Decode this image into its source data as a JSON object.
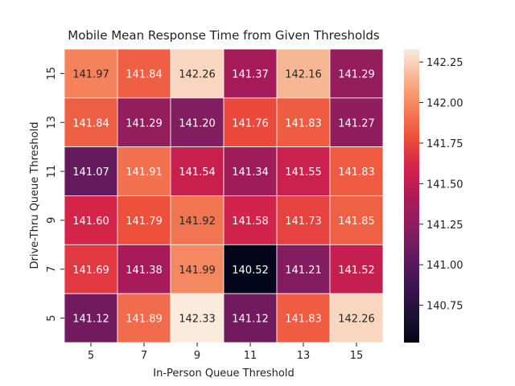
{
  "chart_data": {
    "type": "heatmap",
    "title": "Mobile Mean Response Time from Given Thresholds",
    "xlabel": "In-Person Queue Threshold",
    "ylabel": "Drive-Thru Queue Threshold",
    "x_categories": [
      "5",
      "7",
      "9",
      "11",
      "13",
      "15"
    ],
    "y_categories": [
      "15",
      "13",
      "11",
      "9",
      "7",
      "5"
    ],
    "values": [
      [
        141.97,
        141.84,
        142.26,
        141.37,
        142.16,
        141.29
      ],
      [
        141.84,
        141.29,
        141.2,
        141.76,
        141.83,
        141.27
      ],
      [
        141.07,
        141.91,
        141.54,
        141.34,
        141.55,
        141.83
      ],
      [
        141.6,
        141.79,
        141.92,
        141.58,
        141.73,
        141.85
      ],
      [
        141.69,
        141.38,
        141.99,
        140.52,
        141.21,
        141.52
      ],
      [
        141.12,
        141.89,
        142.33,
        141.12,
        141.83,
        142.26
      ]
    ],
    "labels": [
      [
        "141.97",
        "141.84",
        "142.26",
        "141.37",
        "142.16",
        "141.29"
      ],
      [
        "141.84",
        "141.29",
        "141.20",
        "141.76",
        "141.83",
        "141.27"
      ],
      [
        "141.07",
        "141.91",
        "141.54",
        "141.34",
        "141.55",
        "141.83"
      ],
      [
        "141.60",
        "141.79",
        "141.92",
        "141.58",
        "141.73",
        "141.85"
      ],
      [
        "141.69",
        "141.38",
        "141.99",
        "140.52",
        "141.21",
        "141.52"
      ],
      [
        "141.12",
        "141.89",
        "142.33",
        "141.12",
        "141.83",
        "142.26"
      ]
    ],
    "colorbar": {
      "range": [
        140.52,
        142.33
      ],
      "ticks": [
        140.75,
        141.0,
        141.25,
        141.5,
        141.75,
        142.0,
        142.25
      ],
      "tick_labels": [
        "140.75",
        "141.00",
        "141.25",
        "141.50",
        "141.75",
        "142.00",
        "142.25"
      ],
      "colormap": "rocket",
      "placement": "right"
    },
    "grid": false
  }
}
